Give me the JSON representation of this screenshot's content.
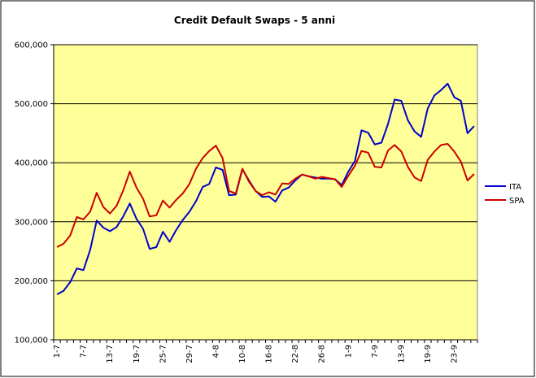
{
  "chart_data": {
    "type": "line",
    "title": "Credit Default Swaps - 5 anni",
    "xlabel": "",
    "ylabel": "",
    "ylim": [
      100000,
      600000
    ],
    "yticks": [
      "100,000",
      "200,000",
      "300,000",
      "400,000",
      "500,000",
      "600,000"
    ],
    "ytick_values": [
      100000,
      200000,
      300000,
      400000,
      500000,
      600000
    ],
    "x_tick_labels": [
      "1-7",
      "7-7",
      "13-7",
      "19-7",
      "25-7",
      "29-7",
      "4-8",
      "10-8",
      "16-8",
      "22-8",
      "26-8",
      "1-9",
      "7-9",
      "13-9",
      "19-9",
      "23-9"
    ],
    "x_tick_positions": [
      0,
      4,
      8,
      12,
      16,
      20,
      24,
      28,
      32,
      36,
      40,
      44,
      48,
      52,
      56,
      60
    ],
    "grid": true,
    "plot_background": "#ffff99",
    "legend_position": "right",
    "series": [
      {
        "name": "ITA",
        "color": "#0000cc",
        "values": [
          177000,
          183000,
          198000,
          221000,
          218000,
          252000,
          302000,
          290000,
          284000,
          291000,
          309000,
          331000,
          305000,
          288000,
          254000,
          257000,
          283000,
          266000,
          286000,
          303000,
          317000,
          335000,
          359000,
          364000,
          392000,
          388000,
          345000,
          346000,
          389000,
          370000,
          352000,
          342000,
          343000,
          334000,
          353000,
          358000,
          370000,
          380000,
          377000,
          375000,
          373000,
          373000,
          372000,
          362000,
          385000,
          403000,
          455000,
          451000,
          431000,
          434000,
          466000,
          507000,
          505000,
          472000,
          453000,
          444000,
          492000,
          514000,
          523000,
          534000,
          511000,
          505000,
          450000,
          462000
        ]
      },
      {
        "name": "SPA",
        "color": "#cc0000",
        "values": [
          257000,
          263000,
          277000,
          308000,
          304000,
          317000,
          349000,
          325000,
          314000,
          327000,
          353000,
          385000,
          358000,
          339000,
          309000,
          311000,
          336000,
          324000,
          337000,
          348000,
          364000,
          390000,
          408000,
          420000,
          429000,
          408000,
          352000,
          348000,
          390000,
          368000,
          352000,
          345000,
          350000,
          346000,
          365000,
          364000,
          373000,
          380000,
          377000,
          373000,
          376000,
          374000,
          372000,
          359000,
          378000,
          395000,
          420000,
          417000,
          393000,
          392000,
          421000,
          430000,
          419000,
          393000,
          375000,
          369000,
          405000,
          419000,
          430000,
          432000,
          419000,
          402000,
          370000,
          381000
        ]
      }
    ]
  }
}
